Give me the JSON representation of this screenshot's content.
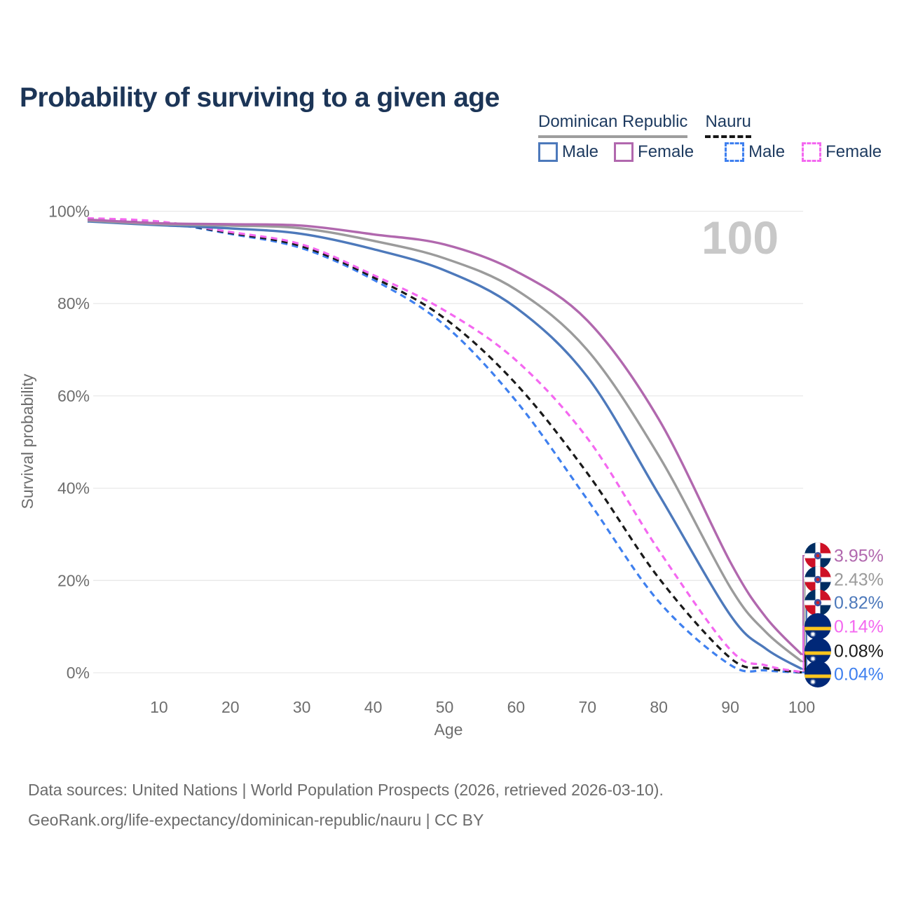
{
  "title": "Probability of surviving to a given age",
  "legend": {
    "groups": [
      {
        "label": "Dominican Republic",
        "underline_style": "solid",
        "underline_color": "#9e9e9e",
        "items": [
          {
            "label": "Male",
            "color": "#4d79bb",
            "dash": false
          },
          {
            "label": "Female",
            "color": "#b168ae",
            "dash": false
          }
        ]
      },
      {
        "label": "Nauru",
        "underline_style": "dashed",
        "underline_color": "#161616",
        "items": [
          {
            "label": "Male",
            "color": "#3f80ef",
            "dash": true
          },
          {
            "label": "Female",
            "color": "#f468f0",
            "dash": true
          }
        ]
      }
    ]
  },
  "chart_data": {
    "type": "line",
    "title": "Probability of surviving to a given age",
    "xlabel": "Age",
    "ylabel": "Survival probability",
    "xlim": [
      0,
      100
    ],
    "ylim": [
      0,
      100
    ],
    "grid": "horizontal",
    "legend_position": "top-right",
    "watermark": "100",
    "x_ticks": [
      "10",
      "20",
      "30",
      "40",
      "50",
      "60",
      "70",
      "80",
      "90",
      "100"
    ],
    "y_ticks": [
      {
        "value": 0,
        "label": "0%"
      },
      {
        "value": 20,
        "label": "20%"
      },
      {
        "value": 40,
        "label": "40%"
      },
      {
        "value": 60,
        "label": "60%"
      },
      {
        "value": 80,
        "label": "80%"
      },
      {
        "value": 100,
        "label": "100%"
      }
    ],
    "x": [
      0,
      10,
      20,
      30,
      40,
      50,
      60,
      70,
      80,
      90,
      95,
      100
    ],
    "series": [
      {
        "id": "dominican-republic-female",
        "country": "Dominican Republic",
        "sex": "Female",
        "color": "#b168ae",
        "dash": false,
        "flag": "dr",
        "end_label": "3.95%",
        "values": [
          98.2,
          97.4,
          97.2,
          96.9,
          95.0,
          92.8,
          87.0,
          76.3,
          54.9,
          24.0,
          12.0,
          3.95
        ]
      },
      {
        "id": "dominican-republic-both",
        "country": "Dominican Republic",
        "sex": "Both sexes",
        "color": "#9b9b9b",
        "dash": false,
        "flag": "dr",
        "end_label": "2.43%",
        "values": [
          98.0,
          97.2,
          96.9,
          96.3,
          93.6,
          89.8,
          83.0,
          69.9,
          47.0,
          18.5,
          8.8,
          2.43
        ]
      },
      {
        "id": "dominican-republic-male",
        "country": "Dominican Republic",
        "sex": "Male",
        "color": "#4d79bb",
        "dash": false,
        "flag": "dr",
        "end_label": "0.82%",
        "values": [
          97.8,
          97.0,
          96.3,
          95.1,
          91.8,
          87.2,
          79.1,
          64.1,
          38.6,
          12.5,
          5.2,
          0.82
        ]
      },
      {
        "id": "nauru-female",
        "country": "Nauru",
        "sex": "Female",
        "color": "#f468f0",
        "dash": true,
        "flag": "nauru",
        "end_label": "0.14%",
        "values": [
          98.5,
          97.8,
          95.5,
          92.8,
          86.2,
          78.5,
          67.7,
          50.8,
          26.5,
          5.0,
          1.6,
          0.14
        ]
      },
      {
        "id": "nauru-both",
        "country": "Nauru",
        "sex": "Both sexes",
        "color": "#1a1a1a",
        "dash": true,
        "flag": "nauru",
        "end_label": "0.08%",
        "values": [
          98.4,
          97.7,
          95.3,
          92.4,
          85.7,
          76.8,
          62.6,
          43.2,
          20.5,
          3.2,
          1.0,
          0.08
        ]
      },
      {
        "id": "nauru-male",
        "country": "Nauru",
        "sex": "Male",
        "color": "#3f80ef",
        "dash": true,
        "flag": "nauru",
        "end_label": "0.04%",
        "values": [
          98.3,
          97.6,
          95.1,
          92.0,
          85.2,
          75.3,
          58.9,
          37.5,
          15.4,
          1.7,
          0.5,
          0.04
        ]
      }
    ],
    "flag_colors": {
      "dr_blue": "#002d62",
      "dr_red": "#ce1126",
      "dr_white": "#ffffff",
      "dr_emblem_blue": "#3f51a3",
      "dr_emblem_red": "#cf2027",
      "nauru_blue": "#012878",
      "nauru_yellow": "#ffc61e",
      "nauru_star": "#ffffff"
    }
  },
  "footer": {
    "line1": "Data sources: United Nations | World Population Prospects (2026, retrieved 2026-03-10).",
    "line2": "GeoRank.org/life-expectancy/dominican-republic/nauru | CC BY"
  }
}
